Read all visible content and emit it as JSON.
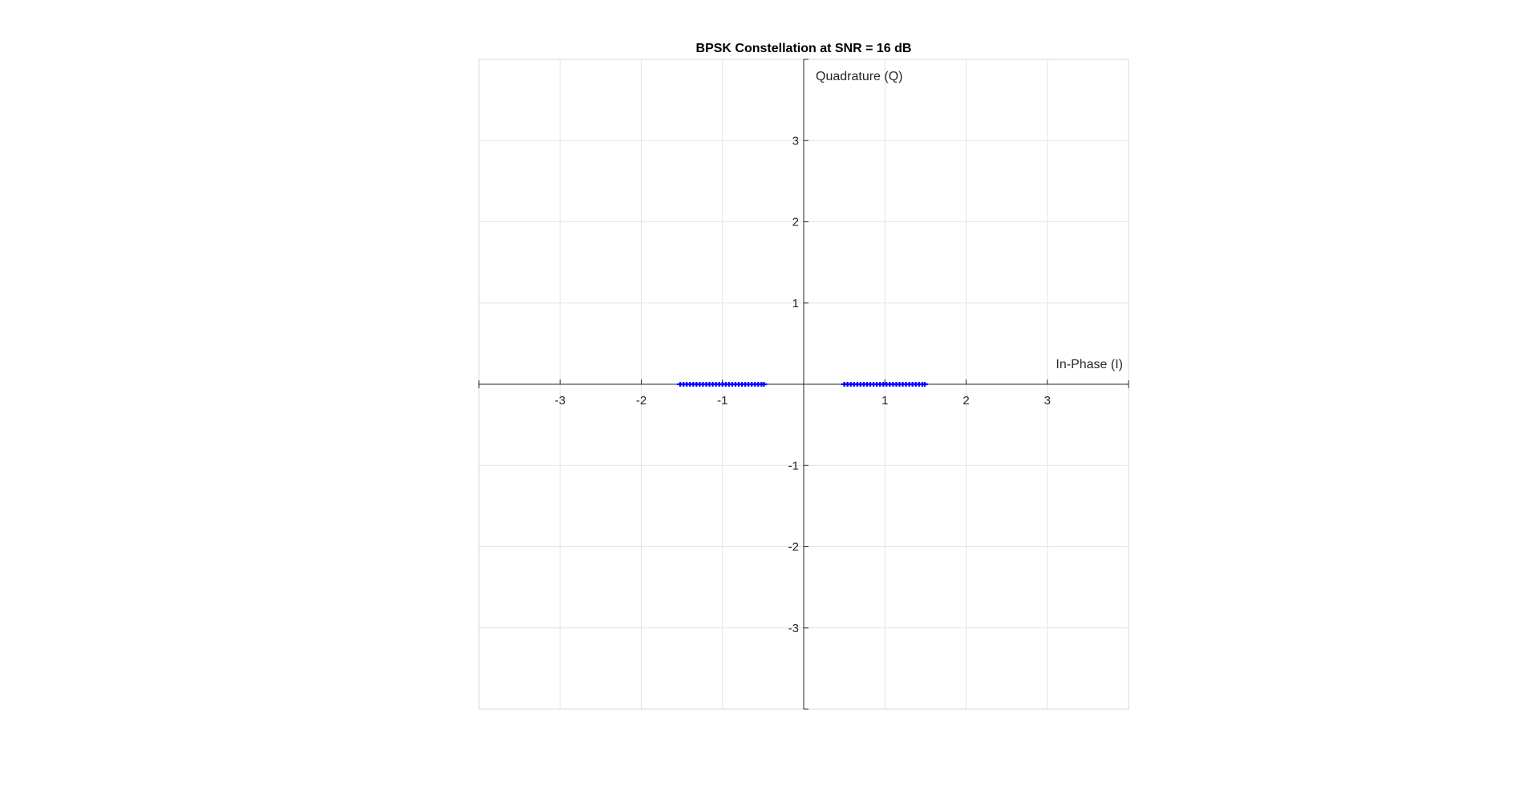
{
  "chart_data": {
    "type": "scatter",
    "title": "BPSK Constellation at SNR = 16 dB",
    "xlabel": "In-Phase (I)",
    "ylabel": "Quadrature (Q)",
    "xlim": [
      -4,
      4
    ],
    "ylim": [
      -4,
      4
    ],
    "xticks": [
      -3,
      -2,
      -1,
      1,
      2,
      3
    ],
    "yticks": [
      3,
      2,
      1,
      -1,
      -2,
      -3
    ],
    "grid": true,
    "axes_through_origin": true,
    "series": [
      {
        "color": "#0000ff",
        "marker": "+",
        "points": [
          [
            -1.52,
            0
          ],
          [
            -1.48,
            0
          ],
          [
            -1.44,
            0
          ],
          [
            -1.4,
            0
          ],
          [
            -1.36,
            0
          ],
          [
            -1.32,
            0
          ],
          [
            -1.28,
            0
          ],
          [
            -1.24,
            0
          ],
          [
            -1.2,
            0
          ],
          [
            -1.16,
            0
          ],
          [
            -1.12,
            0
          ],
          [
            -1.08,
            0
          ],
          [
            -1.04,
            0
          ],
          [
            -1.0,
            0
          ],
          [
            -0.96,
            0
          ],
          [
            -0.92,
            0
          ],
          [
            -0.88,
            0
          ],
          [
            -0.84,
            0
          ],
          [
            -0.8,
            0
          ],
          [
            -0.76,
            0
          ],
          [
            -0.72,
            0
          ],
          [
            -0.68,
            0
          ],
          [
            -0.64,
            0
          ],
          [
            -0.6,
            0
          ],
          [
            -0.56,
            0
          ],
          [
            -0.52,
            0
          ],
          [
            -0.49,
            0
          ],
          [
            0.5,
            0
          ],
          [
            0.54,
            0
          ],
          [
            0.58,
            0
          ],
          [
            0.62,
            0
          ],
          [
            0.66,
            0
          ],
          [
            0.7,
            0
          ],
          [
            0.74,
            0
          ],
          [
            0.78,
            0
          ],
          [
            0.82,
            0
          ],
          [
            0.86,
            0
          ],
          [
            0.9,
            0
          ],
          [
            0.94,
            0
          ],
          [
            0.98,
            0
          ],
          [
            1.02,
            0
          ],
          [
            1.06,
            0
          ],
          [
            1.1,
            0
          ],
          [
            1.14,
            0
          ],
          [
            1.18,
            0
          ],
          [
            1.22,
            0
          ],
          [
            1.26,
            0
          ],
          [
            1.3,
            0
          ],
          [
            1.34,
            0
          ],
          [
            1.38,
            0
          ],
          [
            1.42,
            0
          ],
          [
            1.46,
            0
          ],
          [
            1.49,
            0
          ]
        ]
      }
    ]
  }
}
